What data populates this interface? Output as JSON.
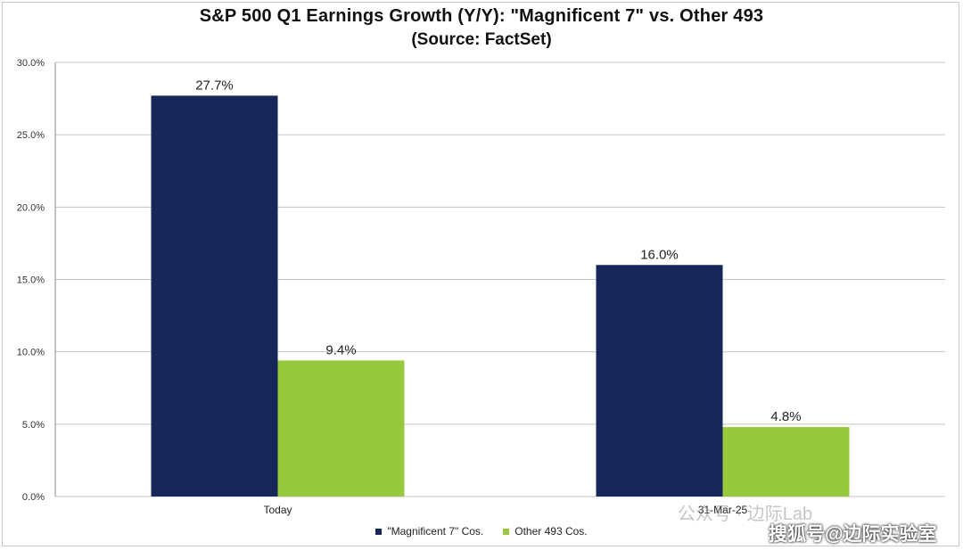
{
  "chart_data": {
    "type": "bar",
    "title": "S&P 500 Q1 Earnings Growth (Y/Y): \"Magnificent 7\" vs. Other 493",
    "subtitle": "(Source: FactSet)",
    "categories": [
      "Today",
      "31-Mar-25"
    ],
    "series": [
      {
        "name": "\"Magnificent 7\" Cos.",
        "values": [
          27.7,
          16.0
        ],
        "labels": [
          "27.7%",
          "16.0%"
        ],
        "color": "#17275a"
      },
      {
        "name": "Other 493 Cos.",
        "values": [
          9.4,
          4.8
        ],
        "labels": [
          "9.4%",
          "4.8%"
        ],
        "color": "#97c83e"
      }
    ],
    "yticks": [
      "0.0%",
      "5.0%",
      "10.0%",
      "15.0%",
      "20.0%",
      "25.0%",
      "30.0%"
    ],
    "ylim": [
      0,
      30
    ],
    "grid": true,
    "legend_position": "bottom"
  },
  "watermark": {
    "line1": "公众号 · 边际Lab",
    "line2": "搜狐号@边际实验室"
  }
}
